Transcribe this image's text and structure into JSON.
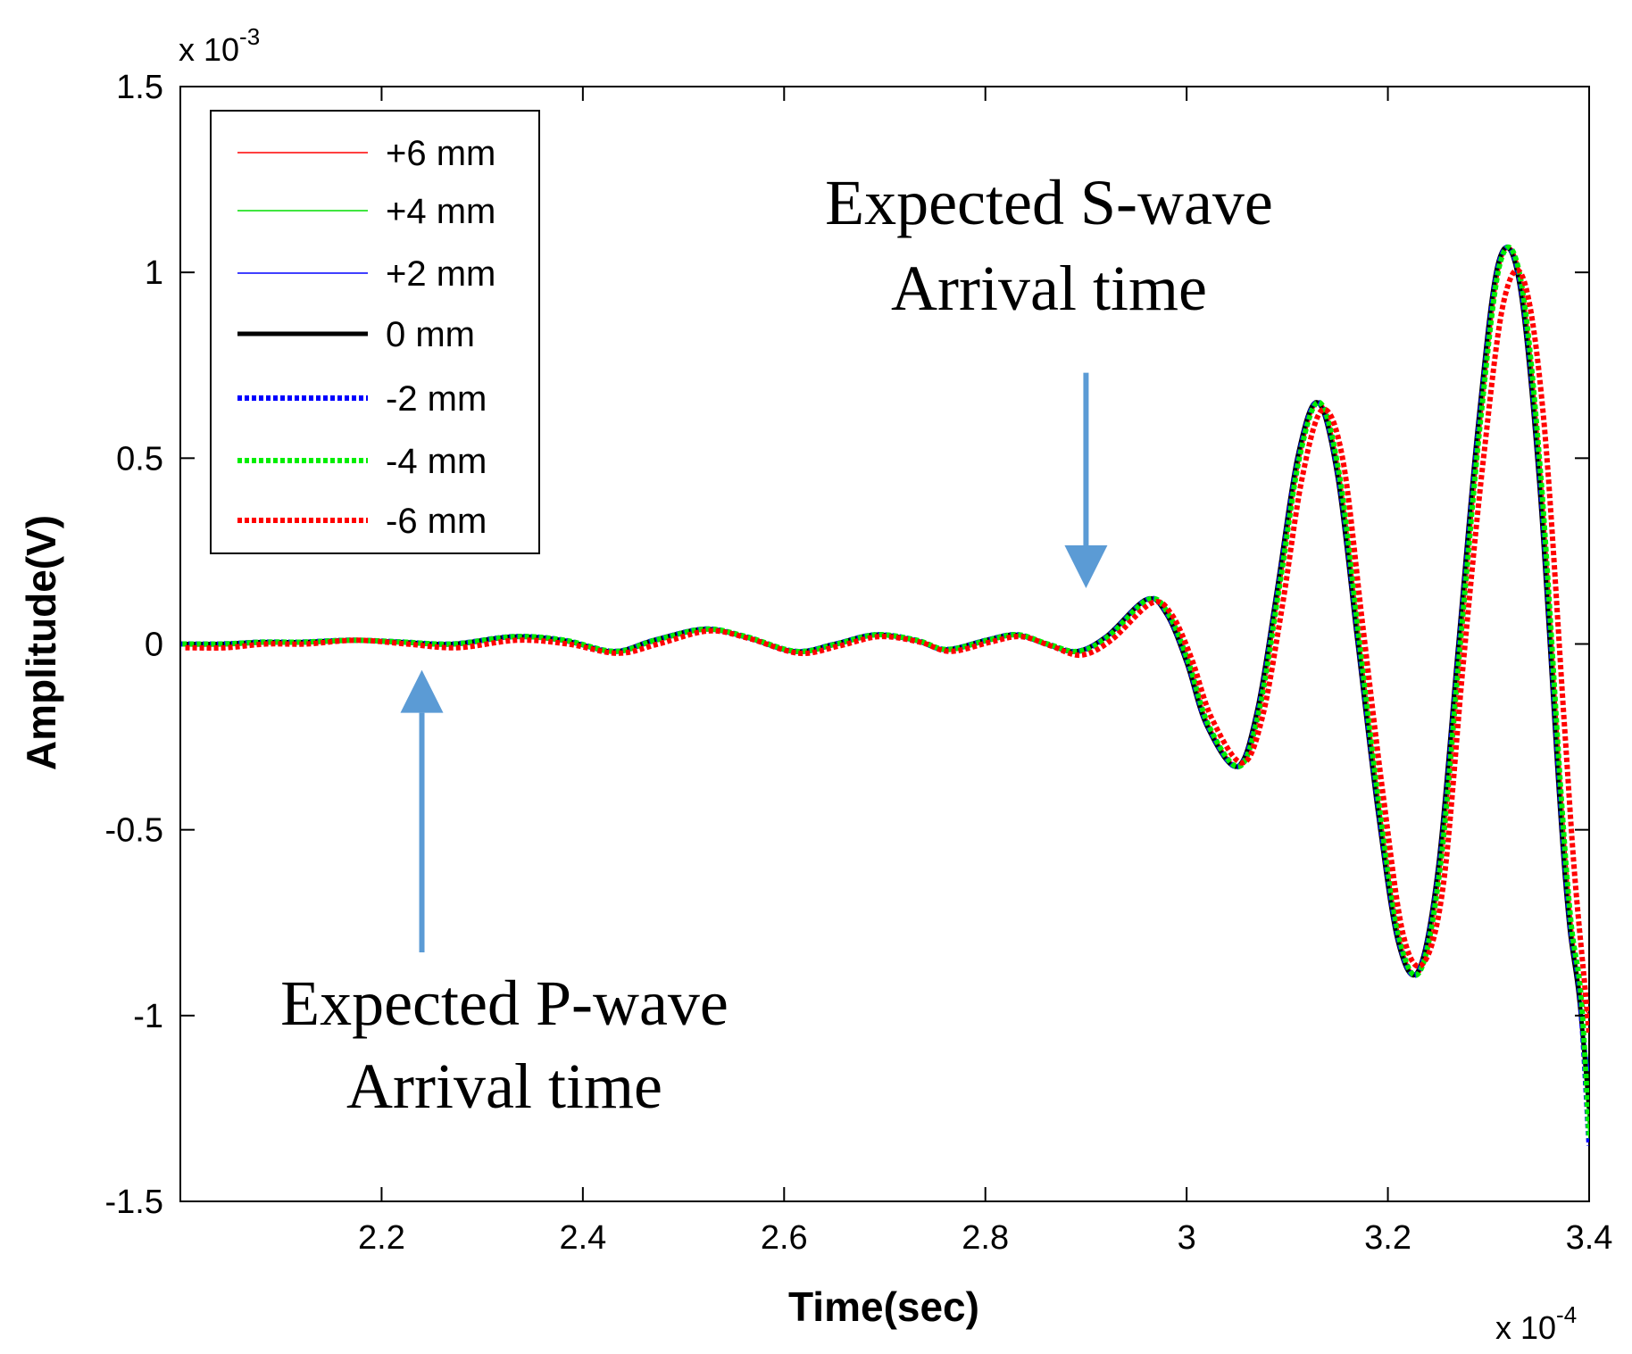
{
  "chart_data": {
    "type": "line",
    "title": "",
    "xlabel": "Time(sec)",
    "ylabel": "Amplitude(V)",
    "x_scale_label": "x 10",
    "x_scale_exponent": "-4",
    "y_scale_label": "x 10",
    "y_scale_exponent": "-3",
    "xlim": [
      2.0,
      3.4
    ],
    "ylim": [
      -1.5,
      1.5
    ],
    "x_ticks": [
      2.2,
      2.4,
      2.6,
      2.8,
      3.0,
      3.2,
      3.4
    ],
    "x_tick_labels": [
      "2.2",
      "2.4",
      "2.6",
      "2.8",
      "3",
      "3.2",
      "3.4"
    ],
    "y_ticks": [
      -1.5,
      -1,
      -0.5,
      0,
      0.5,
      1,
      1.5
    ],
    "y_tick_labels": [
      "-1.5",
      "-1",
      "-0.5",
      "0",
      "0.5",
      "1",
      "1.5"
    ],
    "grid": false,
    "legend_position": "top-left",
    "x": [
      2.0,
      2.04,
      2.08,
      2.12,
      2.17,
      2.22,
      2.27,
      2.33,
      2.38,
      2.43,
      2.47,
      2.52,
      2.56,
      2.61,
      2.65,
      2.69,
      2.73,
      2.76,
      2.8,
      2.83,
      2.86,
      2.89,
      2.92,
      2.96,
      2.98,
      3.0,
      3.02,
      3.05,
      3.07,
      3.09,
      3.11,
      3.13,
      3.15,
      3.17,
      3.19,
      3.21,
      3.23,
      3.25,
      3.27,
      3.29,
      3.31,
      3.33,
      3.35,
      3.37,
      3.38,
      3.39,
      3.4
    ],
    "series": [
      {
        "name": "+6 mm",
        "color": "#ff0000",
        "style": "solid",
        "width": 1.5,
        "shift": 0.003,
        "end": -1.0,
        "values": [
          0.0,
          0.0,
          0.005,
          0.005,
          0.01,
          0.005,
          0.0,
          0.02,
          0.01,
          -0.02,
          0.01,
          0.04,
          0.02,
          -0.02,
          0.0,
          0.025,
          0.01,
          -0.015,
          0.01,
          0.025,
          0.0,
          -0.02,
          0.02,
          0.12,
          0.08,
          -0.05,
          -0.22,
          -0.33,
          -0.18,
          0.15,
          0.5,
          0.65,
          0.45,
          0.0,
          -0.45,
          -0.8,
          -0.88,
          -0.6,
          0.0,
          0.6,
          1.03,
          0.98,
          0.45,
          -0.4,
          -0.75,
          -0.95,
          -1.0
        ]
      },
      {
        "name": "+4 mm",
        "color": "#00dd00",
        "style": "solid",
        "width": 1.5,
        "shift": 0.001,
        "end": -1.33,
        "values": [
          0.0,
          0.0,
          0.005,
          0.005,
          0.01,
          0.005,
          0.0,
          0.02,
          0.01,
          -0.02,
          0.01,
          0.04,
          0.02,
          -0.02,
          0.0,
          0.025,
          0.01,
          -0.015,
          0.01,
          0.025,
          0.0,
          -0.02,
          0.02,
          0.12,
          0.08,
          -0.05,
          -0.22,
          -0.33,
          -0.18,
          0.15,
          0.5,
          0.65,
          0.45,
          0.0,
          -0.45,
          -0.8,
          -0.88,
          -0.6,
          0.0,
          0.6,
          1.03,
          0.98,
          0.45,
          -0.4,
          -0.75,
          -0.95,
          -1.33
        ]
      },
      {
        "name": "+2 mm",
        "color": "#0000ff",
        "style": "solid",
        "width": 1.5,
        "shift": 0.0,
        "end": -1.15,
        "values": [
          0.0,
          0.0,
          0.005,
          0.005,
          0.01,
          0.005,
          0.0,
          0.02,
          0.01,
          -0.02,
          0.01,
          0.04,
          0.02,
          -0.02,
          0.0,
          0.025,
          0.01,
          -0.015,
          0.01,
          0.025,
          0.0,
          -0.02,
          0.02,
          0.12,
          0.08,
          -0.05,
          -0.22,
          -0.33,
          -0.18,
          0.15,
          0.5,
          0.65,
          0.45,
          0.0,
          -0.45,
          -0.8,
          -0.88,
          -0.6,
          0.0,
          0.6,
          1.03,
          0.98,
          0.45,
          -0.4,
          -0.75,
          -0.95,
          -1.15
        ]
      },
      {
        "name": "0 mm",
        "color": "#000000",
        "style": "solid",
        "width": 5,
        "shift": 0.0,
        "end": -1.25,
        "values": [
          0.0,
          0.0,
          0.005,
          0.005,
          0.01,
          0.005,
          0.0,
          0.02,
          0.01,
          -0.02,
          0.01,
          0.04,
          0.02,
          -0.02,
          0.0,
          0.025,
          0.01,
          -0.015,
          0.01,
          0.025,
          0.0,
          -0.02,
          0.02,
          0.12,
          0.08,
          -0.05,
          -0.22,
          -0.33,
          -0.18,
          0.15,
          0.5,
          0.65,
          0.45,
          0.0,
          -0.45,
          -0.8,
          -0.88,
          -0.6,
          0.0,
          0.6,
          1.03,
          0.98,
          0.45,
          -0.4,
          -0.75,
          -0.95,
          -1.25
        ]
      },
      {
        "name": "-2 mm",
        "color": "#0000ff",
        "style": "dotted",
        "width": 6,
        "shift": 0.001,
        "end": -1.35,
        "values": [
          0.0,
          0.0,
          0.005,
          0.005,
          0.01,
          0.005,
          0.0,
          0.02,
          0.01,
          -0.02,
          0.01,
          0.04,
          0.02,
          -0.02,
          0.0,
          0.025,
          0.01,
          -0.015,
          0.01,
          0.025,
          0.0,
          -0.02,
          0.02,
          0.12,
          0.08,
          -0.05,
          -0.22,
          -0.33,
          -0.18,
          0.15,
          0.5,
          0.65,
          0.45,
          0.0,
          -0.45,
          -0.8,
          -0.88,
          -0.6,
          0.0,
          0.6,
          1.03,
          0.98,
          0.45,
          -0.4,
          -0.75,
          -0.95,
          -1.35
        ]
      },
      {
        "name": "-4 mm",
        "color": "#00ee00",
        "style": "dotted",
        "width": 6,
        "shift": 0.002,
        "end": -1.33,
        "values": [
          0.0,
          0.0,
          0.005,
          0.005,
          0.01,
          0.005,
          0.0,
          0.02,
          0.01,
          -0.02,
          0.01,
          0.04,
          0.02,
          -0.02,
          0.0,
          0.025,
          0.01,
          -0.015,
          0.01,
          0.025,
          0.0,
          -0.02,
          0.02,
          0.12,
          0.08,
          -0.05,
          -0.22,
          -0.33,
          -0.18,
          0.15,
          0.5,
          0.65,
          0.45,
          0.0,
          -0.45,
          -0.8,
          -0.88,
          -0.6,
          0.0,
          0.6,
          1.03,
          0.98,
          0.45,
          -0.4,
          -0.75,
          -0.95,
          -1.33
        ]
      },
      {
        "name": "-6 mm",
        "color": "#ff0000",
        "style": "dotted",
        "width": 6,
        "shift": 0.005,
        "end": -1.05,
        "values": [
          -0.01,
          -0.01,
          0.0,
          0.0,
          0.01,
          0.0,
          -0.01,
          0.01,
          0.0,
          -0.025,
          0.0,
          0.035,
          0.015,
          -0.025,
          -0.005,
          0.02,
          0.005,
          -0.02,
          0.005,
          0.02,
          -0.005,
          -0.03,
          0.01,
          0.11,
          0.08,
          -0.04,
          -0.2,
          -0.32,
          -0.2,
          0.1,
          0.45,
          0.63,
          0.5,
          0.05,
          -0.4,
          -0.78,
          -0.86,
          -0.65,
          -0.05,
          0.5,
          0.92,
          0.98,
          0.6,
          -0.2,
          -0.6,
          -0.9,
          -1.05
        ]
      }
    ],
    "annotations": [
      {
        "text_line1": "Expected S-wave",
        "text_line2": "Arrival time",
        "arrow_x": 2.9,
        "arrow_from_y": 0.73,
        "arrow_to_y": 0.15,
        "direction": "down"
      },
      {
        "text_line1": "Expected P-wave",
        "text_line2": "Arrival time",
        "arrow_x": 2.24,
        "arrow_from_y": -0.83,
        "arrow_to_y": -0.07,
        "direction": "up"
      }
    ],
    "annotation_color": "#5b9bd5"
  }
}
